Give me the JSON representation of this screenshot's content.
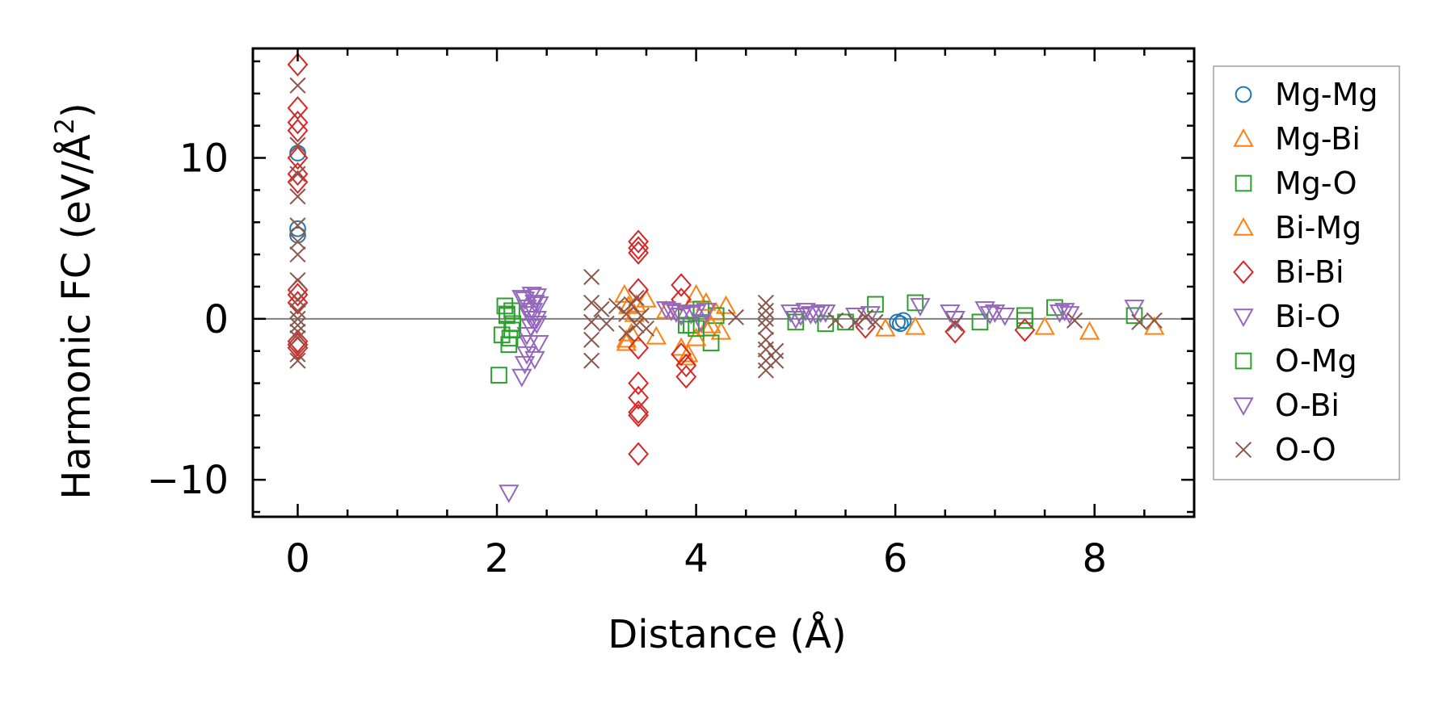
{
  "chart_data": {
    "type": "scatter",
    "title": "",
    "xlabel": "Distance (Å)",
    "ylabel_main": "Harmonic FC (eV/Å",
    "ylabel_sup": "2",
    "ylabel_end": ")",
    "xlim": [
      -0.45,
      9.0
    ],
    "ylim": [
      -12.3,
      16.8
    ],
    "xticks": [
      0,
      2,
      4,
      6,
      8
    ],
    "xtick_labels": [
      "0",
      "2",
      "4",
      "6",
      "8"
    ],
    "yticks": [
      -10,
      0,
      10
    ],
    "ytick_labels": [
      "−10",
      "0",
      "10"
    ],
    "x_minor_step": 0.5,
    "y_minor_step": 2,
    "grid": false,
    "zero_line": true,
    "legend_position": "outside-right",
    "series": [
      {
        "name": "Mg-Mg",
        "marker": "circle",
        "color": "#1f77b4",
        "x": [
          0,
          0,
          0,
          6.02,
          6.05,
          6.08
        ],
        "y": [
          10.3,
          5.6,
          5.2,
          -0.2,
          -0.3,
          -0.1
        ]
      },
      {
        "name": "Mg-Bi",
        "marker": "triangle-up",
        "color": "#ff7f0e",
        "x": [
          3.28,
          3.3,
          3.32,
          3.35,
          3.38,
          3.6,
          3.7,
          3.85,
          3.92,
          4.0,
          4.1,
          4.2,
          4.25,
          4.3,
          5.9,
          6.2,
          7.5,
          7.95,
          8.6
        ],
        "y": [
          1.5,
          -1.3,
          0.8,
          -0.9,
          0.3,
          -1.1,
          0.5,
          -1.8,
          -2.2,
          1.5,
          -0.6,
          0.4,
          -0.8,
          0.8,
          -0.6,
          -0.5,
          -0.5,
          -0.8,
          -0.5
        ]
      },
      {
        "name": "Mg-O",
        "marker": "square",
        "color": "#2ca02c",
        "x": [
          2.02,
          2.05,
          2.08,
          2.1,
          2.12,
          2.13,
          2.15,
          2.16,
          3.9,
          3.95,
          4.05,
          4.15,
          4.2,
          5.8,
          6.2,
          7.3,
          7.6,
          8.4
        ],
        "y": [
          -3.5,
          -1.0,
          0.8,
          0.2,
          -1.6,
          -1.2,
          0.5,
          -0.3,
          0.3,
          -0.4,
          0.6,
          -1.5,
          0.2,
          0.9,
          1.0,
          0.2,
          0.7,
          0.2
        ]
      },
      {
        "name": "Bi-Mg",
        "marker": "triangle-up",
        "color": "#ff7f0e",
        "x": [
          3.3,
          3.4,
          3.5,
          3.9,
          4.0,
          4.1,
          4.15
        ],
        "y": [
          -1.5,
          0.9,
          1.2,
          -2.4,
          -1.2,
          1.0,
          -0.4
        ]
      },
      {
        "name": "Bi-Bi",
        "marker": "diamond",
        "color": "#d62728",
        "x": [
          0,
          0,
          0,
          0,
          0,
          0,
          0,
          0,
          0,
          0,
          0,
          0,
          0,
          3.42,
          3.42,
          3.42,
          3.42,
          3.42,
          3.42,
          3.42,
          3.42,
          3.42,
          3.42,
          3.85,
          3.85,
          3.85,
          3.9,
          3.9,
          5.7,
          6.6,
          7.3
        ],
        "y": [
          15.8,
          13.1,
          12.2,
          11.7,
          10.0,
          9.0,
          8.5,
          1.8,
          1.5,
          1.0,
          -1.4,
          -1.6,
          -1.8,
          4.8,
          4.4,
          4.1,
          1.8,
          -1.8,
          -4.0,
          -4.9,
          -5.8,
          -6.0,
          -8.4,
          2.1,
          1.2,
          -2.2,
          -2.9,
          -3.6,
          -0.5,
          -0.8,
          -0.7
        ]
      },
      {
        "name": "Bi-O",
        "marker": "triangle-down",
        "color": "#9467bd",
        "x": [
          2.12,
          2.25,
          2.28,
          2.3,
          2.32,
          2.34,
          2.36,
          2.38,
          2.4,
          2.42,
          2.3,
          2.35,
          2.4,
          2.28,
          2.32,
          3.7,
          3.8,
          3.95,
          4.05,
          4.1,
          4.95,
          5.0,
          5.1,
          5.2,
          5.3,
          5.6,
          5.75,
          6.25,
          6.55,
          6.9,
          7.0,
          7.1,
          7.65,
          7.75,
          8.4
        ],
        "y": [
          -10.8,
          -3.6,
          -2.8,
          -2.2,
          -1.5,
          -0.5,
          0.5,
          1.0,
          1.4,
          0.9,
          -1.0,
          0.0,
          -0.3,
          1.2,
          0.3,
          0.6,
          0.4,
          0.3,
          -0.2,
          0.5,
          0.4,
          0.0,
          0.5,
          0.3,
          0.4,
          0.2,
          0.3,
          0.8,
          0.4,
          0.6,
          0.4,
          0.2,
          0.4,
          0.3,
          0.7
        ]
      },
      {
        "name": "O-Mg",
        "marker": "square",
        "color": "#2ca02c",
        "x": [
          2.1,
          2.15,
          3.9,
          4.0,
          5.0,
          5.3,
          5.5,
          6.85,
          7.3
        ],
        "y": [
          0.3,
          -0.7,
          -0.4,
          -0.6,
          -0.2,
          -0.3,
          -0.2,
          -0.2,
          -0.1
        ]
      },
      {
        "name": "O-Bi",
        "marker": "triangle-down",
        "color": "#9467bd",
        "x": [
          2.25,
          2.3,
          2.35,
          2.4,
          2.42,
          2.38,
          3.75,
          3.85,
          4.0,
          5.05,
          5.15,
          5.25,
          6.6,
          6.95,
          7.7
        ],
        "y": [
          1.3,
          0.7,
          1.5,
          0.0,
          -1.5,
          -2.5,
          0.5,
          0.2,
          0.4,
          0.2,
          0.3,
          0.4,
          0.0,
          0.3,
          0.5
        ]
      },
      {
        "name": "O-O",
        "marker": "x",
        "color": "#8c564b",
        "x": [
          0,
          0,
          0,
          0,
          0,
          0,
          0,
          0,
          0,
          0,
          0,
          0,
          0,
          0,
          0,
          0,
          2.95,
          2.95,
          2.95,
          2.95,
          2.95,
          3.05,
          3.1,
          3.2,
          3.3,
          3.35,
          3.4,
          3.45,
          3.5,
          3.3,
          3.4,
          4.4,
          4.7,
          4.7,
          4.7,
          4.7,
          4.7,
          4.7,
          4.7,
          4.7,
          4.8,
          4.8,
          5.4,
          5.6,
          5.7,
          5.8,
          6.6,
          7.8,
          8.45,
          8.6
        ],
        "y": [
          14.5,
          10.8,
          9.0,
          7.6,
          5.8,
          4.8,
          4.0,
          2.4,
          1.2,
          0.5,
          0.0,
          -0.4,
          -0.8,
          -1.2,
          -2.2,
          -2.6,
          2.6,
          1.0,
          -0.2,
          -1.3,
          -2.6,
          0.6,
          -0.3,
          0.8,
          0.3,
          0.9,
          -0.4,
          0.2,
          -0.6,
          -0.9,
          1.3,
          0.1,
          1.0,
          0.5,
          0.0,
          -0.5,
          -1.3,
          -1.9,
          -2.6,
          -3.2,
          -2.0,
          -2.6,
          -0.1,
          -0.2,
          0.1,
          -0.2,
          -0.3,
          -0.1,
          -0.2,
          -0.1
        ]
      }
    ]
  }
}
